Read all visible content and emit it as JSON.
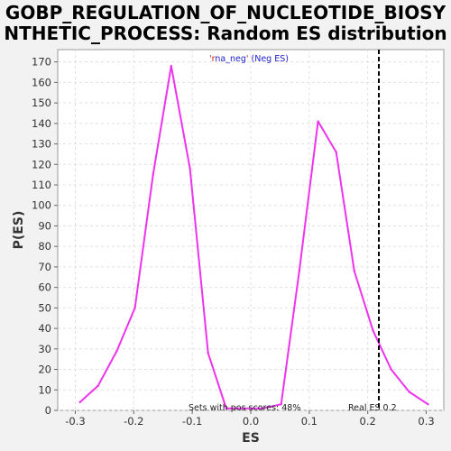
{
  "chart_data": {
    "type": "line",
    "title_line1": "GOBP_REGULATION_OF_NUCLEOTIDE_BIOSY",
    "title_line2": "NTHETIC_PROCESS: Random ES distribution",
    "xlabel": "ES",
    "ylabel": "P(ES)",
    "xlim": [
      -0.33,
      0.33
    ],
    "ylim": [
      0,
      176
    ],
    "grid": true,
    "x_ticks": [
      -0.3,
      -0.2,
      -0.1,
      0.0,
      0.1,
      0.2,
      0.3
    ],
    "x_tick_labels": [
      "-0.3",
      "-0.2",
      "-0.1",
      "0.0",
      "0.1",
      "0.2",
      "0.3"
    ],
    "y_ticks": [
      0,
      10,
      20,
      30,
      40,
      50,
      60,
      70,
      80,
      90,
      100,
      110,
      120,
      130,
      140,
      150,
      160,
      170
    ],
    "legend": {
      "quote_left": "'",
      "series_quoted": "na_neg",
      "quote_right": "'",
      "prefix": "r",
      "suffix": " (Neg ES)",
      "placement": "top-center"
    },
    "series": [
      {
        "color": "#ee33ee",
        "x": [
          -0.292,
          -0.261,
          -0.229,
          -0.198,
          -0.167,
          -0.136,
          -0.104,
          -0.073,
          -0.042,
          0.021,
          0.052,
          0.083,
          0.115,
          0.146,
          0.177,
          0.209,
          0.24,
          0.271,
          0.303
        ],
        "y": [
          4,
          12,
          29,
          50,
          115,
          168,
          118,
          28,
          1,
          1,
          3,
          68,
          141,
          126,
          68,
          39,
          20,
          9,
          3
        ]
      }
    ],
    "real_es": 0.219,
    "annotations": {
      "pos_scores": "Sets with pos scores: 48%",
      "real_es": "Real ES 0.2"
    }
  }
}
